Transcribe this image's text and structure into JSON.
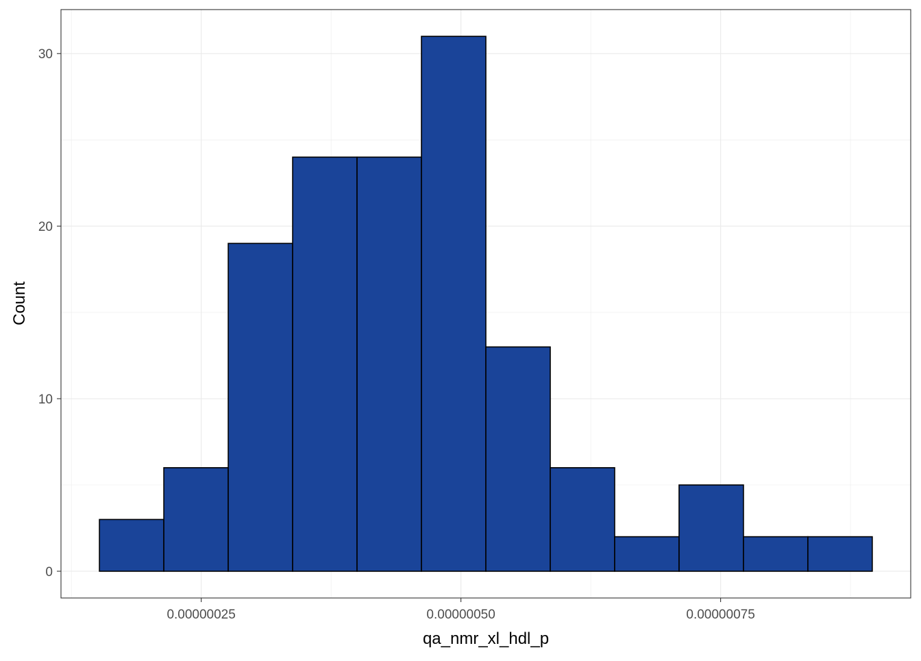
{
  "chart_data": {
    "type": "bar",
    "title": "",
    "xlabel": "qa_nmr_xl_hdl_p",
    "ylabel": "Count",
    "bar_color": "#1A4499",
    "bar_edge_color": "#000000",
    "grid": true,
    "bin_width": 6.2e-08,
    "bins": [
      {
        "start": 1.52e-07,
        "end": 2.14e-07,
        "count": 3
      },
      {
        "start": 2.14e-07,
        "end": 2.76e-07,
        "count": 6
      },
      {
        "start": 2.76e-07,
        "end": 3.38e-07,
        "count": 19
      },
      {
        "start": 3.38e-07,
        "end": 4e-07,
        "count": 24
      },
      {
        "start": 4e-07,
        "end": 4.62e-07,
        "count": 24
      },
      {
        "start": 4.62e-07,
        "end": 5.24e-07,
        "count": 31
      },
      {
        "start": 5.24e-07,
        "end": 5.86e-07,
        "count": 13
      },
      {
        "start": 5.86e-07,
        "end": 6.48e-07,
        "count": 6
      },
      {
        "start": 6.48e-07,
        "end": 7.1e-07,
        "count": 2
      },
      {
        "start": 7.1e-07,
        "end": 7.72e-07,
        "count": 5
      },
      {
        "start": 7.72e-07,
        "end": 8.34e-07,
        "count": 2
      },
      {
        "start": 8.34e-07,
        "end": 8.96e-07,
        "count": 2
      }
    ],
    "xlim": [
      1.15e-07,
      9.33e-07
    ],
    "ylim": [
      -1.55,
      32.55
    ],
    "x_ticks": [
      {
        "value": 2.5e-07,
        "label": "0.00000025"
      },
      {
        "value": 5e-07,
        "label": "0.00000050"
      },
      {
        "value": 7.5e-07,
        "label": "0.00000075"
      }
    ],
    "y_ticks": [
      {
        "value": 0,
        "label": "0"
      },
      {
        "value": 10,
        "label": "10"
      },
      {
        "value": 20,
        "label": "20"
      },
      {
        "value": 30,
        "label": "30"
      }
    ],
    "x_minor_ticks": [
      1.25e-07,
      3.75e-07,
      6.25e-07,
      8.75e-07
    ],
    "y_minor_ticks": [
      5,
      15,
      25
    ]
  }
}
